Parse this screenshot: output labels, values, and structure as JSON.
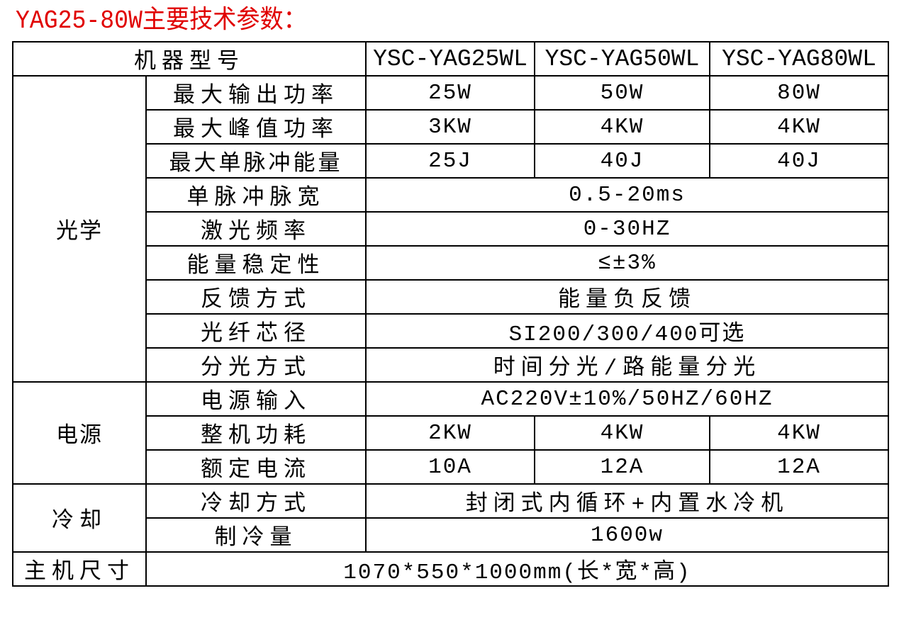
{
  "title": "YAG25-80W主要技术参数：",
  "header": {
    "label": "机器型号",
    "models": [
      "YSC-YAG25WL",
      "YSC-YAG50WL",
      "YSC-YAG80WL"
    ]
  },
  "groups": {
    "optics": "光学",
    "power": "电源",
    "cooling": "冷却"
  },
  "rows": {
    "max_output": {
      "label": "最大输出功率",
      "values": [
        "25W",
        "50W",
        "80W"
      ]
    },
    "max_peak": {
      "label": "最大峰值功率",
      "values": [
        "3KW",
        "4KW",
        "4KW"
      ]
    },
    "max_pulse_energy": {
      "label": "最大单脉冲能量",
      "values": [
        "25J",
        "40J",
        "40J"
      ]
    },
    "pulse_width": {
      "label": "单脉冲脉宽",
      "value": "0.5-20ms"
    },
    "frequency": {
      "label": "激光频率",
      "value": "0-30HZ"
    },
    "stability": {
      "label": "能量稳定性",
      "value": "≤±3%"
    },
    "feedback": {
      "label": "反馈方式",
      "value": "能量负反馈"
    },
    "fiber": {
      "label": "光纤芯径",
      "value": "SI200/300/400可选"
    },
    "split": {
      "label": "分光方式",
      "value": "时间分光/路能量分光"
    },
    "power_input": {
      "label": "电源输入",
      "value": "AC220V±10%/50HZ/60HZ"
    },
    "consumption": {
      "label": "整机功耗",
      "values": [
        "2KW",
        "4KW",
        "4KW"
      ]
    },
    "current": {
      "label": "额定电流",
      "values": [
        "10A",
        "12A",
        "12A"
      ]
    },
    "cooling_method": {
      "label": "冷却方式",
      "value": "封闭式内循环+内置水冷机"
    },
    "cooling_capacity": {
      "label": "制冷量",
      "value": "1600w"
    },
    "size": {
      "label": "主机尺寸",
      "value": "1070*550*1000mm(长*宽*高)"
    }
  }
}
